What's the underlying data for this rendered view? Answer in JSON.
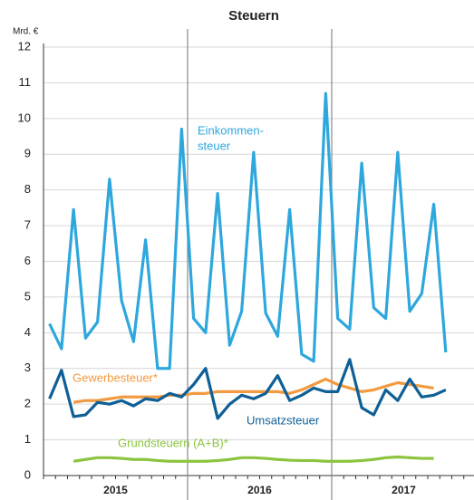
{
  "chart_data": {
    "type": "line",
    "title": "Steuern",
    "y_unit": "Mrd. €",
    "categories": [
      null,
      null,
      null,
      null,
      null,
      null,
      null,
      null,
      null,
      null,
      null,
      null,
      null,
      null,
      null,
      null,
      null,
      null,
      null,
      null,
      null,
      null,
      null,
      null,
      null,
      null,
      null,
      null,
      null,
      null,
      null,
      null,
      null,
      null,
      null,
      null
    ],
    "year_labels": [
      "2015",
      "2016",
      "2017"
    ],
    "ylim": [
      0,
      12
    ],
    "yticks": [
      0,
      1,
      2,
      3,
      4,
      5,
      6,
      7,
      8,
      9,
      10,
      11,
      12
    ],
    "grid": true,
    "series": [
      {
        "label": [
          "Einkommen-",
          "steuer"
        ],
        "color": "#2ea7dd",
        "values": [
          4.25,
          3.55,
          7.45,
          3.85,
          4.3,
          8.3,
          4.9,
          3.75,
          6.6,
          3.0,
          3.0,
          9.7,
          4.4,
          4.0,
          7.9,
          3.65,
          4.6,
          9.05,
          4.55,
          3.9,
          7.45,
          3.4,
          3.2,
          10.7,
          4.4,
          4.1,
          8.75,
          4.7,
          4.4,
          9.05,
          4.6,
          5.1,
          7.6,
          3.45,
          null,
          null
        ]
      },
      {
        "name": "Gewerbesteuer*",
        "color": "#f29a41",
        "values": [
          null,
          null,
          2.05,
          2.1,
          2.1,
          2.15,
          2.2,
          2.2,
          2.2,
          2.2,
          2.25,
          2.25,
          2.3,
          2.3,
          2.35,
          2.35,
          2.35,
          2.35,
          2.35,
          2.35,
          2.3,
          2.4,
          2.55,
          2.7,
          2.55,
          2.45,
          2.35,
          2.4,
          2.5,
          2.6,
          2.55,
          2.5,
          2.45,
          null,
          null,
          null
        ]
      },
      {
        "name": "Umsatzsteuer",
        "color": "#0f5f97",
        "values": [
          2.15,
          2.95,
          1.65,
          1.7,
          2.05,
          2.0,
          2.1,
          1.95,
          2.15,
          2.1,
          2.3,
          2.2,
          2.55,
          3.0,
          1.6,
          2.0,
          2.25,
          2.15,
          2.3,
          2.8,
          2.1,
          2.25,
          2.45,
          2.35,
          2.35,
          3.25,
          1.9,
          1.7,
          2.4,
          2.1,
          2.7,
          2.2,
          2.25,
          2.4,
          null,
          null
        ]
      },
      {
        "name": "Grundsteuern (A+B)*",
        "color": "#8cc43f",
        "values": [
          null,
          null,
          0.4,
          0.45,
          0.5,
          0.5,
          0.48,
          0.45,
          0.45,
          0.42,
          0.4,
          0.4,
          0.4,
          0.4,
          0.42,
          0.45,
          0.5,
          0.5,
          0.48,
          0.45,
          0.43,
          0.42,
          0.42,
          0.4,
          0.4,
          0.4,
          0.42,
          0.45,
          0.5,
          0.52,
          0.5,
          0.48,
          0.48,
          null,
          null,
          null
        ]
      }
    ]
  }
}
